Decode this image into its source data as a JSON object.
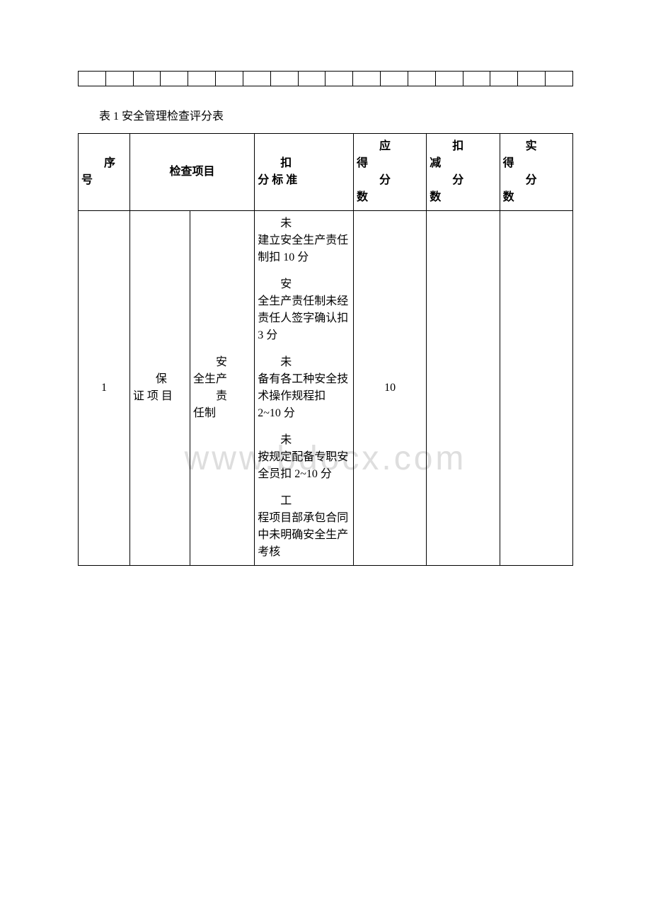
{
  "watermark": "www.bdocx.com",
  "emptyTable": {
    "cols": 18
  },
  "caption": "表 1 安全管理检查评分表",
  "header": {
    "seq": {
      "line1": "序",
      "line2": "号"
    },
    "item": "检查项目",
    "std": {
      "line1": "扣",
      "line2": "分 标 准"
    },
    "ying": {
      "line1": "应",
      "mid": "得",
      "line2": "分",
      "last": "数"
    },
    "kou": {
      "line1": "扣",
      "mid": "减",
      "line2": "分",
      "last": "数"
    },
    "shi": {
      "line1": "实",
      "mid": "得",
      "line2": "分",
      "last": "数"
    }
  },
  "row": {
    "seq": "1",
    "category": {
      "l1": "保",
      "l2": "证 项 目"
    },
    "subitem": {
      "l1": "安",
      "l2": "全生产",
      "l3": "责",
      "l4": "任制"
    },
    "criteria": [
      "未建立安全生产责任制扣 10 分",
      "安全生产责任制未经责任人签字确认扣 3 分",
      "未备有各工种安全技术操作规程扣 2~10 分",
      "未按规定配备专职安全员扣 2~10 分",
      "工程项目部承包合同中未明确安全生产考核"
    ],
    "ying": "10",
    "kou": "",
    "shi": ""
  },
  "colors": {
    "background": "#ffffff",
    "text": "#000000",
    "border": "#000000",
    "watermark": "#c9c9c9"
  }
}
